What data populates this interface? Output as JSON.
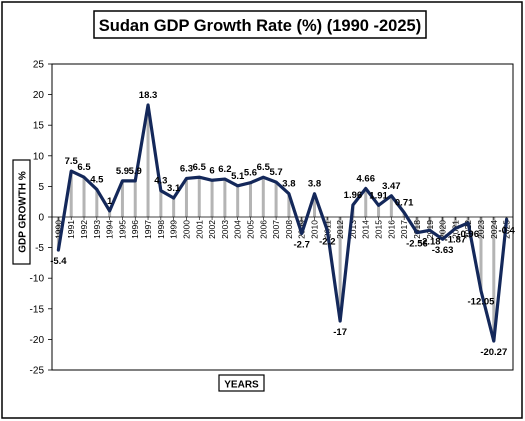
{
  "chart_data": {
    "type": "line",
    "title": "Sudan GDP Growth Rate (%) (1990 -2025)",
    "xlabel": "YEARS",
    "ylabel": "GDP GROWTH %",
    "ylim": [
      -25,
      25
    ],
    "yticks": [
      -25,
      -20,
      -15,
      -10,
      -5,
      0,
      5,
      10,
      15,
      20,
      25
    ],
    "grid": false,
    "legend": "none",
    "colors": {
      "line": "#14285a",
      "bar": "#b4b4b4",
      "frame": "#000000"
    },
    "categories": [
      "1990",
      "1991",
      "1992",
      "1993",
      "1994",
      "1995",
      "1996",
      "1997",
      "1998",
      "1999",
      "2000",
      "2001",
      "2002",
      "2003",
      "2004",
      "2005",
      "2006",
      "2007",
      "2008",
      "2009",
      "2010",
      "2011",
      "2012",
      "2013",
      "2014",
      "2015",
      "2016",
      "2017",
      "2018",
      "2019",
      "2020",
      "2021",
      "2022",
      "2023",
      "2024",
      "2025"
    ],
    "values": [
      -5.4,
      7.5,
      6.5,
      4.5,
      1,
      5.9,
      5.9,
      18.3,
      4.3,
      3.1,
      6.3,
      6.5,
      6,
      6.2,
      5.1,
      5.6,
      6.5,
      5.7,
      3.8,
      -2.7,
      3.8,
      -2.2,
      -17,
      1.96,
      4.66,
      1.91,
      3.47,
      0.71,
      -2.56,
      -2.18,
      -3.63,
      -1.87,
      -0.96,
      -12.05,
      -20.27,
      -0.4
    ],
    "data_labels": [
      "-5.4",
      "7.5",
      "6.5",
      "4.5",
      "1",
      "5.9",
      "5.9",
      "18.3",
      "4.3",
      "3.1",
      "6.3",
      "6.5",
      "6",
      "6.2",
      "5.1",
      "5.6",
      "6.5",
      "5.7",
      "3.8",
      "-2.7",
      "3.8",
      "-2.2",
      "-17",
      "1.96",
      "4.66",
      "1.91",
      "3.47",
      "0.71",
      "-2.56",
      "-2.18",
      "-3.63",
      "-1.87",
      "-0.96",
      "-12.05",
      "-20.27",
      "-0.4"
    ]
  }
}
